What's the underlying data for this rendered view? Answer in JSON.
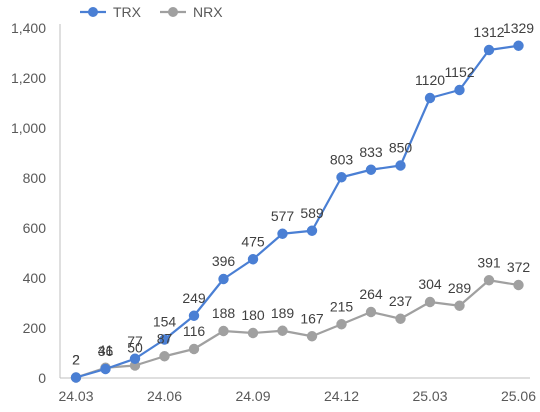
{
  "chart_data": {
    "type": "line",
    "title": "",
    "xlabel": "",
    "ylabel": "",
    "ylim": [
      0,
      1400
    ],
    "yticks": [
      0,
      200,
      400,
      600,
      800,
      1000,
      1200,
      1400
    ],
    "ytick_labels": [
      "0",
      "200",
      "400",
      "600",
      "800",
      "1,000",
      "1,200",
      "1,400"
    ],
    "x": [
      "24.03",
      "24.04",
      "24.05",
      "24.06",
      "24.07",
      "24.08",
      "24.09",
      "24.10",
      "24.11",
      "24.12",
      "25.01",
      "25.02",
      "25.03",
      "25.04",
      "25.05",
      "25.06"
    ],
    "x_tick_labels": [
      "24.03",
      "",
      "",
      "24.06",
      "",
      "",
      "24.09",
      "",
      "",
      "24.12",
      "",
      "",
      "25.03",
      "",
      "",
      "25.06"
    ],
    "grid": false,
    "legend_position": "top-left",
    "series": [
      {
        "name": "TRX",
        "color": "#4a7fd4",
        "values": [
          2,
          36,
          77,
          154,
          249,
          396,
          475,
          577,
          589,
          803,
          833,
          850,
          1120,
          1152,
          1312,
          1329
        ],
        "labels": [
          "2",
          "36",
          "77",
          "154",
          "249",
          "396",
          "475",
          "577",
          "589",
          "803",
          "833",
          "850",
          "1120",
          "1152",
          "1312",
          "1329"
        ]
      },
      {
        "name": "NRX",
        "color": "#a0a0a0",
        "values": [
          2,
          41,
          50,
          87,
          116,
          188,
          180,
          189,
          167,
          215,
          264,
          237,
          304,
          289,
          391,
          372
        ],
        "labels": [
          "2",
          "41",
          "50",
          "87",
          "116",
          "188",
          "180",
          "189",
          "167",
          "215",
          "264",
          "237",
          "304",
          "289",
          "391",
          "372"
        ]
      }
    ]
  }
}
